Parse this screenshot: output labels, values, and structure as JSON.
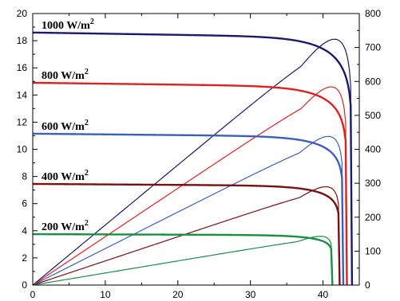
{
  "chart_data": {
    "type": "line",
    "title": "",
    "xlabel": "",
    "ylabel": "",
    "ylabel_right": "",
    "xlim": [
      0,
      45
    ],
    "ylim": [
      0,
      20
    ],
    "ylim_right": [
      0,
      800
    ],
    "x_ticks": [
      "0",
      "10",
      "20",
      "30",
      "40"
    ],
    "y_ticks_left": [
      "0",
      "2",
      "4",
      "6",
      "8",
      "10",
      "12",
      "14",
      "16",
      "18",
      "20"
    ],
    "y_ticks_right": [
      "0",
      "100",
      "200",
      "300",
      "400",
      "500",
      "600",
      "700",
      "800"
    ],
    "grid": false,
    "annotations": [
      {
        "base": "1000 W/m",
        "sup": "2",
        "series": "1000 W/m²"
      },
      {
        "base": "800 W/m",
        "sup": "2",
        "series": "800 W/m²"
      },
      {
        "base": "600 W/m",
        "sup": "2",
        "series": "600 W/m²"
      },
      {
        "base": "400 W/m",
        "sup": "2",
        "series": "400 W/m²"
      },
      {
        "base": "200 W/m",
        "sup": "2",
        "series": "200 W/m²"
      }
    ],
    "series": [
      {
        "name": "1000 W/m²",
        "color": "#1a1a6e",
        "isc": 18.6,
        "voc": 44.0,
        "vmp": 37.0,
        "pmax": 645
      },
      {
        "name": "800 W/m²",
        "color": "#e02020",
        "isc": 14.9,
        "voc": 43.3,
        "vmp": 37.0,
        "pmax": 520
      },
      {
        "name": "600 W/m²",
        "color": "#3b5fc0",
        "isc": 11.15,
        "voc": 42.8,
        "vmp": 36.8,
        "pmax": 390
      },
      {
        "name": "400 W/m²",
        "color": "#7a1010",
        "isc": 7.45,
        "voc": 42.3,
        "vmp": 36.8,
        "pmax": 258
      },
      {
        "name": "200 W/m²",
        "color": "#179040",
        "isc": 3.75,
        "voc": 41.3,
        "vmp": 36.5,
        "pmax": 128
      }
    ]
  }
}
